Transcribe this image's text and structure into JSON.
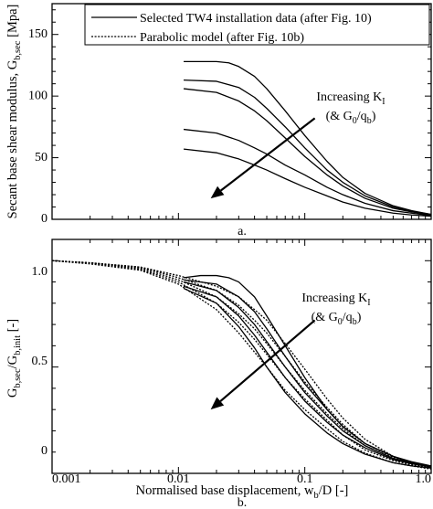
{
  "chart_data": [
    {
      "id": "a",
      "type": "line",
      "panel_label": "a.",
      "ylabel_main": "Secant base shear modulus, G",
      "ylabel_sub": "b,sec",
      "ylabel_unit": " [Mpa]",
      "x_scale": "log",
      "xlim": [
        0.001,
        1.0
      ],
      "ylim": [
        0,
        175
      ],
      "yticks": [
        0,
        50,
        100,
        150
      ],
      "ytick_labels": [
        "0",
        "50",
        "100",
        "150"
      ],
      "legend": {
        "placement": "top-right",
        "entries": [
          {
            "label": "Selected TW4 installation data (after Fig. 10)",
            "style": "solid"
          },
          {
            "label": "Parabolic model (after Fig. 10b)",
            "style": "dotted"
          }
        ]
      },
      "annotation": {
        "line1_main": "Increasing K",
        "line1_sub": "I",
        "line2_a": "(& G",
        "line2_sub1": "0",
        "line2_b": "/q",
        "line2_sub2": "b",
        "line2_c": ")",
        "arrow_from": {
          "x": 0.12,
          "y": 82
        },
        "arrow_to": {
          "x": 0.018,
          "y": 17
        }
      },
      "series": [
        {
          "style": "solid",
          "points": [
            [
              0.011,
              128
            ],
            [
              0.02,
              128
            ],
            [
              0.025,
              127
            ],
            [
              0.03,
              124
            ],
            [
              0.04,
              116
            ],
            [
              0.05,
              106
            ],
            [
              0.07,
              88
            ],
            [
              0.1,
              68
            ],
            [
              0.15,
              47
            ],
            [
              0.2,
              34
            ],
            [
              0.3,
              21
            ],
            [
              0.5,
              11
            ],
            [
              0.7,
              7
            ],
            [
              1.0,
              4
            ]
          ]
        },
        {
          "style": "solid",
          "points": [
            [
              0.011,
              113
            ],
            [
              0.02,
              112
            ],
            [
              0.03,
              107
            ],
            [
              0.04,
              99
            ],
            [
              0.05,
              90
            ],
            [
              0.07,
              75
            ],
            [
              0.1,
              58
            ],
            [
              0.15,
              40
            ],
            [
              0.2,
              30
            ],
            [
              0.3,
              19
            ],
            [
              0.5,
              10
            ],
            [
              0.7,
              6.5
            ],
            [
              1.0,
              4
            ]
          ]
        },
        {
          "style": "solid",
          "points": [
            [
              0.011,
              106
            ],
            [
              0.02,
              103
            ],
            [
              0.03,
              96
            ],
            [
              0.04,
              88
            ],
            [
              0.05,
              80
            ],
            [
              0.07,
              66
            ],
            [
              0.1,
              51
            ],
            [
              0.15,
              36
            ],
            [
              0.2,
              27
            ],
            [
              0.3,
              17
            ],
            [
              0.5,
              9
            ],
            [
              0.7,
              6
            ],
            [
              1.0,
              3.5
            ]
          ]
        },
        {
          "style": "solid",
          "points": [
            [
              0.011,
              73
            ],
            [
              0.02,
              70
            ],
            [
              0.03,
              64
            ],
            [
              0.04,
              58
            ],
            [
              0.05,
              53
            ],
            [
              0.07,
              44
            ],
            [
              0.1,
              36
            ],
            [
              0.15,
              26
            ],
            [
              0.2,
              20
            ],
            [
              0.3,
              13
            ],
            [
              0.5,
              7
            ],
            [
              0.7,
              5
            ],
            [
              1.0,
              3
            ]
          ]
        },
        {
          "style": "solid",
          "points": [
            [
              0.011,
              57
            ],
            [
              0.02,
              54
            ],
            [
              0.03,
              49
            ],
            [
              0.04,
              44
            ],
            [
              0.05,
              40
            ],
            [
              0.07,
              33
            ],
            [
              0.1,
              26
            ],
            [
              0.15,
              19
            ],
            [
              0.2,
              14
            ],
            [
              0.3,
              9
            ],
            [
              0.5,
              5
            ],
            [
              0.7,
              3.5
            ],
            [
              1.0,
              2.5
            ]
          ]
        }
      ]
    },
    {
      "id": "b",
      "type": "line",
      "panel_label": "b.",
      "ylabel_main": "G",
      "ylabel_sub1": "b,sec",
      "ylabel_mid": "/G",
      "ylabel_sub2": "b,init",
      "ylabel_unit": " [-]",
      "xlabel_main": "Normalised base displacement, w",
      "xlabel_sub": "b",
      "xlabel_unit": "/D [-]",
      "x_scale": "log",
      "xlim": [
        0.001,
        1.0
      ],
      "ylim": [
        0,
        1.1
      ],
      "yticks": [
        0,
        0.5,
        1.0
      ],
      "ytick_labels": [
        "0",
        "0.5",
        "1.0"
      ],
      "xticks": [
        0.001,
        0.01,
        0.1,
        1.0
      ],
      "xtick_labels": [
        "0.001",
        "0.01",
        "0.1",
        "1.0"
      ],
      "annotation": {
        "line1_main": "Increasing K",
        "line1_sub": "I",
        "line2_a": "(& G",
        "line2_sub1": "0",
        "line2_b": "/q",
        "line2_sub2": "b",
        "line2_c": ")",
        "arrow_from": {
          "x": 0.12,
          "y": 0.72
        },
        "arrow_to": {
          "x": 0.018,
          "y": 0.3
        }
      },
      "series": [
        {
          "style": "solid",
          "points": [
            [
              0.011,
              0.92
            ],
            [
              0.015,
              0.93
            ],
            [
              0.02,
              0.93
            ],
            [
              0.025,
              0.92
            ],
            [
              0.03,
              0.9
            ],
            [
              0.04,
              0.83
            ],
            [
              0.05,
              0.74
            ],
            [
              0.07,
              0.6
            ],
            [
              0.1,
              0.45
            ],
            [
              0.15,
              0.3
            ],
            [
              0.2,
              0.22
            ],
            [
              0.3,
              0.14
            ],
            [
              0.5,
              0.08
            ],
            [
              0.7,
              0.05
            ],
            [
              1.0,
              0.03
            ]
          ]
        },
        {
          "style": "solid",
          "points": [
            [
              0.011,
              0.91
            ],
            [
              0.02,
              0.89
            ],
            [
              0.03,
              0.83
            ],
            [
              0.04,
              0.76
            ],
            [
              0.05,
              0.68
            ],
            [
              0.07,
              0.55
            ],
            [
              0.1,
              0.42
            ],
            [
              0.15,
              0.3
            ],
            [
              0.2,
              0.22
            ],
            [
              0.3,
              0.14
            ],
            [
              0.5,
              0.08
            ],
            [
              0.7,
              0.055
            ],
            [
              1.0,
              0.035
            ]
          ]
        },
        {
          "style": "solid",
          "points": [
            [
              0.011,
              0.9
            ],
            [
              0.02,
              0.86
            ],
            [
              0.03,
              0.78
            ],
            [
              0.04,
              0.7
            ],
            [
              0.05,
              0.62
            ],
            [
              0.07,
              0.5
            ],
            [
              0.1,
              0.38
            ],
            [
              0.15,
              0.27
            ],
            [
              0.2,
              0.2
            ],
            [
              0.3,
              0.13
            ],
            [
              0.5,
              0.07
            ],
            [
              0.7,
              0.05
            ],
            [
              1.0,
              0.03
            ]
          ]
        },
        {
          "style": "solid",
          "points": [
            [
              0.011,
              0.88
            ],
            [
              0.02,
              0.83
            ],
            [
              0.03,
              0.74
            ],
            [
              0.04,
              0.65
            ],
            [
              0.05,
              0.57
            ],
            [
              0.07,
              0.45
            ],
            [
              0.1,
              0.34
            ],
            [
              0.15,
              0.24
            ],
            [
              0.2,
              0.18
            ],
            [
              0.3,
              0.12
            ],
            [
              0.5,
              0.065
            ],
            [
              0.7,
              0.045
            ],
            [
              1.0,
              0.03
            ]
          ]
        },
        {
          "style": "solid",
          "points": [
            [
              0.011,
              0.87
            ],
            [
              0.02,
              0.8
            ],
            [
              0.03,
              0.69
            ],
            [
              0.04,
              0.59
            ],
            [
              0.05,
              0.5
            ],
            [
              0.07,
              0.38
            ],
            [
              0.1,
              0.28
            ],
            [
              0.15,
              0.19
            ],
            [
              0.2,
              0.14
            ],
            [
              0.3,
              0.09
            ],
            [
              0.5,
              0.05
            ],
            [
              0.7,
              0.035
            ],
            [
              1.0,
              0.025
            ]
          ]
        },
        {
          "style": "dotted",
          "points": [
            [
              0.001,
              1.0
            ],
            [
              0.002,
              0.99
            ],
            [
              0.005,
              0.97
            ],
            [
              0.01,
              0.93
            ],
            [
              0.02,
              0.88
            ],
            [
              0.03,
              0.83
            ],
            [
              0.04,
              0.77
            ],
            [
              0.05,
              0.72
            ],
            [
              0.07,
              0.61
            ],
            [
              0.1,
              0.49
            ],
            [
              0.15,
              0.35
            ],
            [
              0.2,
              0.26
            ],
            [
              0.3,
              0.16
            ],
            [
              0.5,
              0.08
            ],
            [
              0.7,
              0.05
            ],
            [
              1.0,
              0.03
            ]
          ]
        },
        {
          "style": "dotted",
          "points": [
            [
              0.001,
              1.0
            ],
            [
              0.002,
              0.99
            ],
            [
              0.005,
              0.97
            ],
            [
              0.01,
              0.92
            ],
            [
              0.02,
              0.86
            ],
            [
              0.03,
              0.79
            ],
            [
              0.04,
              0.72
            ],
            [
              0.05,
              0.66
            ],
            [
              0.07,
              0.55
            ],
            [
              0.1,
              0.43
            ],
            [
              0.15,
              0.31
            ],
            [
              0.2,
              0.23
            ],
            [
              0.3,
              0.14
            ],
            [
              0.5,
              0.075
            ],
            [
              0.7,
              0.05
            ],
            [
              1.0,
              0.03
            ]
          ]
        },
        {
          "style": "dotted",
          "points": [
            [
              0.001,
              1.0
            ],
            [
              0.002,
              0.99
            ],
            [
              0.005,
              0.965
            ],
            [
              0.01,
              0.91
            ],
            [
              0.02,
              0.83
            ],
            [
              0.03,
              0.75
            ],
            [
              0.04,
              0.68
            ],
            [
              0.05,
              0.61
            ],
            [
              0.07,
              0.5
            ],
            [
              0.1,
              0.39
            ],
            [
              0.15,
              0.28
            ],
            [
              0.2,
              0.21
            ],
            [
              0.3,
              0.13
            ],
            [
              0.5,
              0.07
            ],
            [
              0.7,
              0.045
            ],
            [
              1.0,
              0.03
            ]
          ]
        },
        {
          "style": "dotted",
          "points": [
            [
              0.001,
              1.0
            ],
            [
              0.002,
              0.99
            ],
            [
              0.005,
              0.96
            ],
            [
              0.01,
              0.9
            ],
            [
              0.02,
              0.8
            ],
            [
              0.03,
              0.71
            ],
            [
              0.04,
              0.63
            ],
            [
              0.05,
              0.56
            ],
            [
              0.07,
              0.45
            ],
            [
              0.1,
              0.35
            ],
            [
              0.15,
              0.25
            ],
            [
              0.2,
              0.18
            ],
            [
              0.3,
              0.11
            ],
            [
              0.5,
              0.06
            ],
            [
              0.7,
              0.04
            ],
            [
              1.0,
              0.025
            ]
          ]
        },
        {
          "style": "dotted",
          "points": [
            [
              0.001,
              1.0
            ],
            [
              0.002,
              0.985
            ],
            [
              0.005,
              0.955
            ],
            [
              0.01,
              0.89
            ],
            [
              0.02,
              0.77
            ],
            [
              0.03,
              0.66
            ],
            [
              0.04,
              0.57
            ],
            [
              0.05,
              0.5
            ],
            [
              0.07,
              0.39
            ],
            [
              0.1,
              0.3
            ],
            [
              0.15,
              0.21
            ],
            [
              0.2,
              0.15
            ],
            [
              0.3,
              0.095
            ],
            [
              0.5,
              0.05
            ],
            [
              0.7,
              0.035
            ],
            [
              1.0,
              0.02
            ]
          ]
        }
      ]
    }
  ]
}
